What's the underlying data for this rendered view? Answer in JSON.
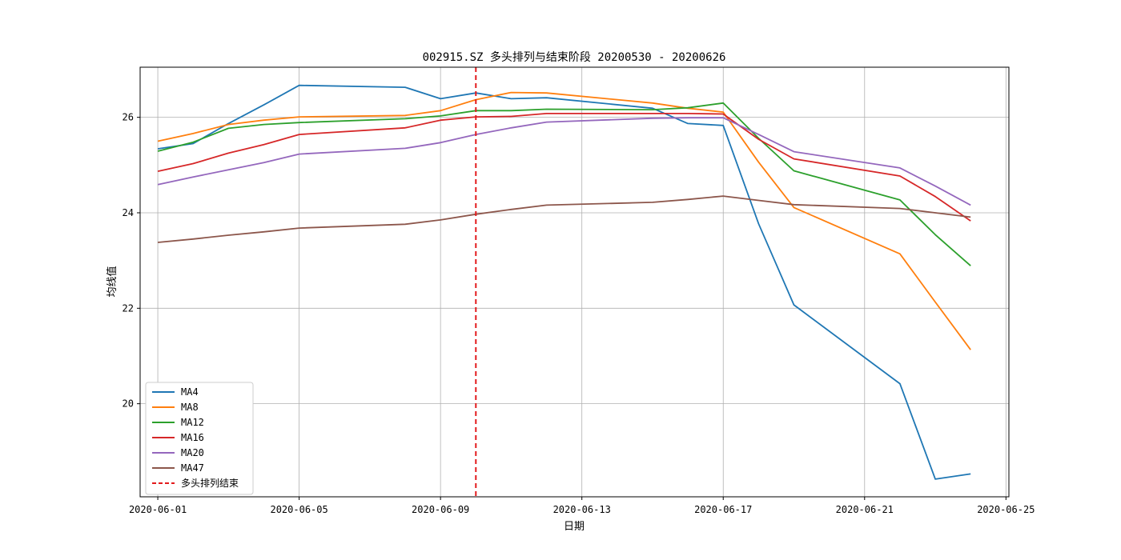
{
  "chart_data": {
    "type": "line",
    "title": "002915.SZ 多头排列与结束阶段 20200530 - 20200626",
    "xlabel": "日期",
    "ylabel": "均线值",
    "x": [
      "2020-06-01",
      "2020-06-02",
      "2020-06-03",
      "2020-06-04",
      "2020-06-05",
      "2020-06-08",
      "2020-06-09",
      "2020-06-10",
      "2020-06-11",
      "2020-06-12",
      "2020-06-15",
      "2020-06-16",
      "2020-06-17",
      "2020-06-18",
      "2020-06-19",
      "2020-06-22",
      "2020-06-23",
      "2020-06-24"
    ],
    "xlim": [
      "2020-05-31T12:00",
      "2020-06-25T02:00"
    ],
    "x_ticks": [
      "2020-06-01",
      "2020-06-05",
      "2020-06-09",
      "2020-06-13",
      "2020-06-17",
      "2020-06-21",
      "2020-06-25"
    ],
    "ylim": [
      18.05,
      27.05
    ],
    "y_ticks": [
      20,
      22,
      24,
      26
    ],
    "grid": true,
    "legend_position": "lower-left",
    "series": [
      {
        "name": "MA4",
        "color": "#1f77b4",
        "values": [
          25.34,
          25.45,
          25.87,
          26.26,
          26.67,
          26.63,
          26.39,
          26.51,
          26.39,
          26.41,
          26.19,
          25.87,
          25.83,
          23.77,
          22.07,
          20.42,
          18.42,
          18.53
        ]
      },
      {
        "name": "MA8",
        "color": "#ff7f0e",
        "values": [
          25.5,
          25.66,
          25.85,
          25.94,
          26.01,
          26.04,
          26.14,
          26.37,
          26.52,
          26.51,
          26.3,
          26.19,
          26.11,
          25.06,
          24.11,
          23.14,
          22.13,
          21.13
        ]
      },
      {
        "name": "MA12",
        "color": "#2ca02c",
        "values": [
          25.29,
          25.48,
          25.77,
          25.85,
          25.89,
          25.97,
          26.03,
          26.14,
          26.14,
          26.17,
          26.16,
          26.2,
          26.3,
          25.56,
          24.88,
          24.27,
          23.54,
          22.89
        ]
      },
      {
        "name": "MA16",
        "color": "#d62728",
        "values": [
          24.87,
          25.03,
          25.25,
          25.43,
          25.64,
          25.78,
          25.94,
          26.01,
          26.02,
          26.08,
          26.08,
          26.08,
          26.07,
          25.54,
          25.13,
          24.77,
          24.34,
          23.83
        ]
      },
      {
        "name": "MA20",
        "color": "#9467bd",
        "values": [
          24.59,
          24.75,
          24.9,
          25.05,
          25.23,
          25.35,
          25.47,
          25.64,
          25.78,
          25.9,
          25.98,
          25.99,
          25.99,
          25.64,
          25.28,
          24.94,
          24.56,
          24.16
        ]
      },
      {
        "name": "MA47",
        "color": "#8c564b",
        "values": [
          23.38,
          23.45,
          23.53,
          23.6,
          23.68,
          23.76,
          23.85,
          23.97,
          24.07,
          24.16,
          24.22,
          24.28,
          24.35,
          24.26,
          24.17,
          24.09,
          24.0,
          23.91
        ]
      }
    ],
    "vline": {
      "name": "多头排列结束",
      "x": "2020-06-10",
      "color": "#e31a1c",
      "style": "dashed"
    }
  }
}
